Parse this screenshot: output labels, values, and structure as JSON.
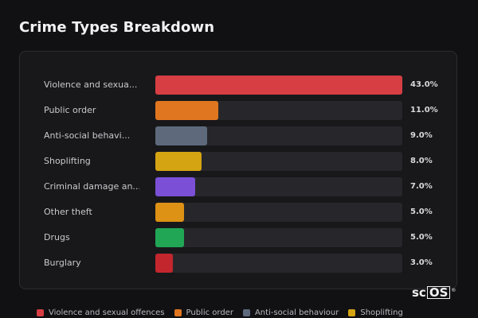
{
  "title": "Crime Types Breakdown",
  "chart_data": {
    "type": "bar",
    "orientation": "horizontal",
    "categories": [
      "Violence and sexua...",
      "Public order",
      "Anti-social behavi...",
      "Shoplifting",
      "Criminal damage an...",
      "Other theft",
      "Drugs",
      "Burglary"
    ],
    "values": [
      43.0,
      11.0,
      9.0,
      8.0,
      7.0,
      5.0,
      5.0,
      3.0
    ],
    "value_labels": [
      "43.0%",
      "11.0%",
      "9.0%",
      "8.0%",
      "7.0%",
      "5.0%",
      "5.0%",
      "3.0%"
    ],
    "colors": [
      "#d63e44",
      "#e0761f",
      "#5e6a7c",
      "#d4a412",
      "#7b50d6",
      "#dd9115",
      "#21a655",
      "#c3262d"
    ],
    "xlim": [
      0,
      43
    ],
    "grid": false,
    "legend": {
      "placement": "bottom",
      "entries": [
        {
          "label": "Violence and sexual offences",
          "color": "#d63e44"
        },
        {
          "label": "Public order",
          "color": "#e0761f"
        },
        {
          "label": "Anti-social behaviour",
          "color": "#5e6a7c"
        },
        {
          "label": "Shoplifting",
          "color": "#d4a412"
        }
      ]
    }
  },
  "logo": {
    "text_main": "sc",
    "text_box": "OS",
    "mark": "®"
  }
}
